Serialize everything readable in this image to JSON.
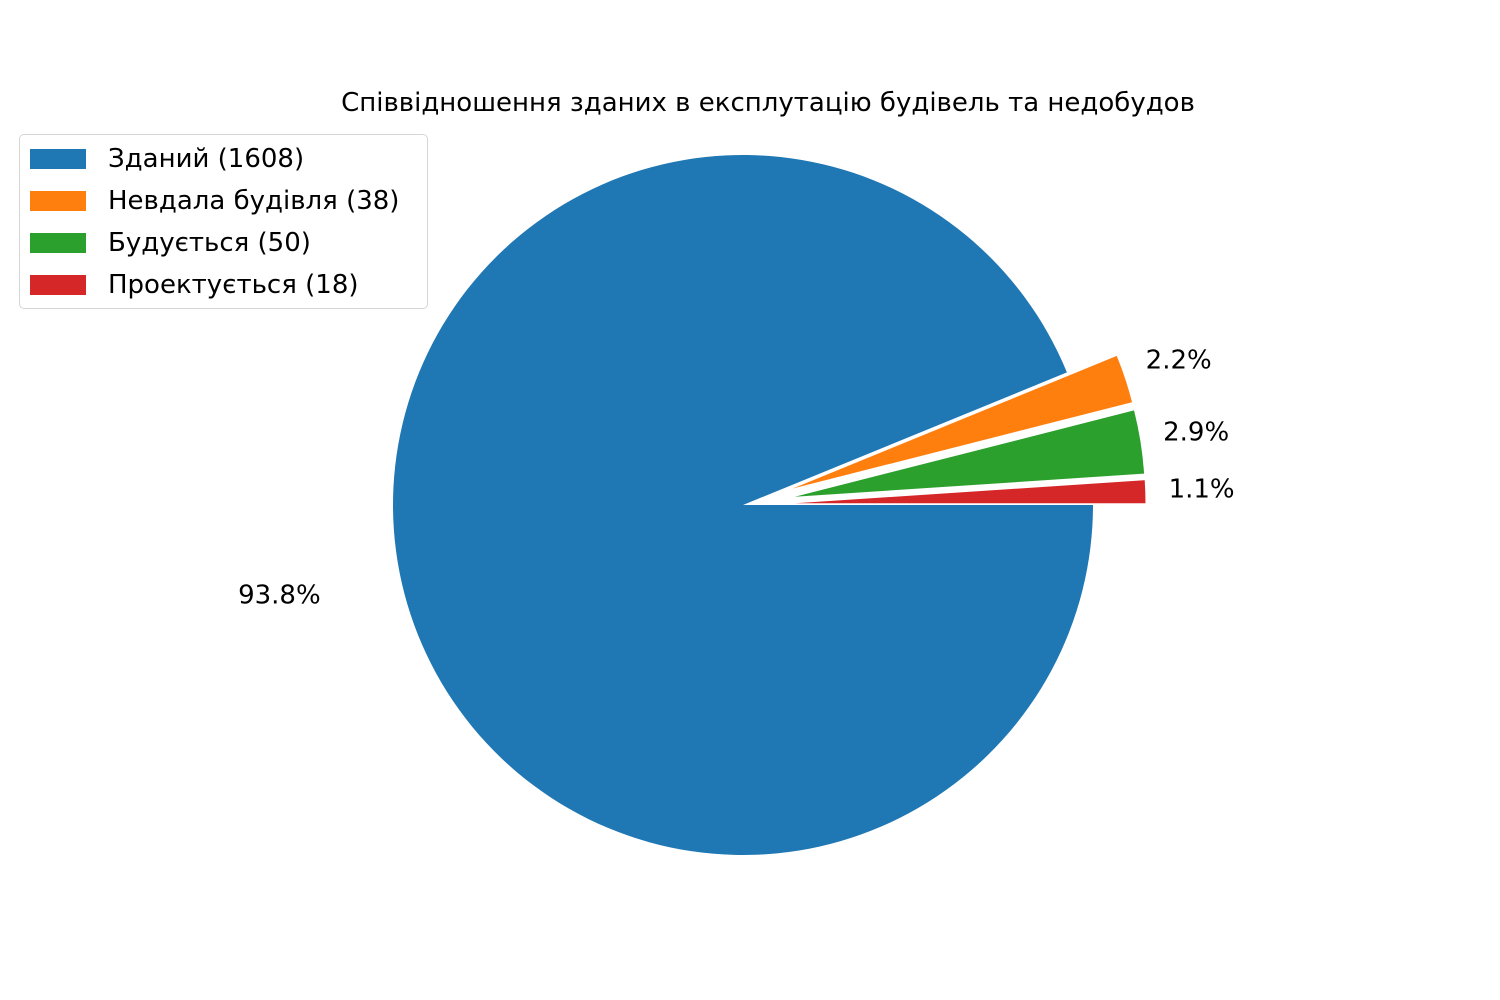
{
  "chart_data": {
    "type": "pie",
    "title": "Співвідношення зданих в експлутацію будівель та недобудов",
    "slices": [
      {
        "label": "Зданий (1608)",
        "value": 1608,
        "percent_label": "93.8%",
        "color": "#1f77b4",
        "explode": 0
      },
      {
        "label": "Невдала будівля (38)",
        "value": 38,
        "percent_label": "2.2%",
        "color": "#ff7f0e",
        "explode": 0.15
      },
      {
        "label": "Будується (50)",
        "value": 50,
        "percent_label": "2.9%",
        "color": "#2ca02c",
        "explode": 0.15
      },
      {
        "label": "Проектується (18)",
        "value": 18,
        "percent_label": "1.1%",
        "color": "#d62728",
        "explode": 0.15
      }
    ],
    "start_angle": 0,
    "direction": "clockwise",
    "legend_position": "top-left"
  }
}
